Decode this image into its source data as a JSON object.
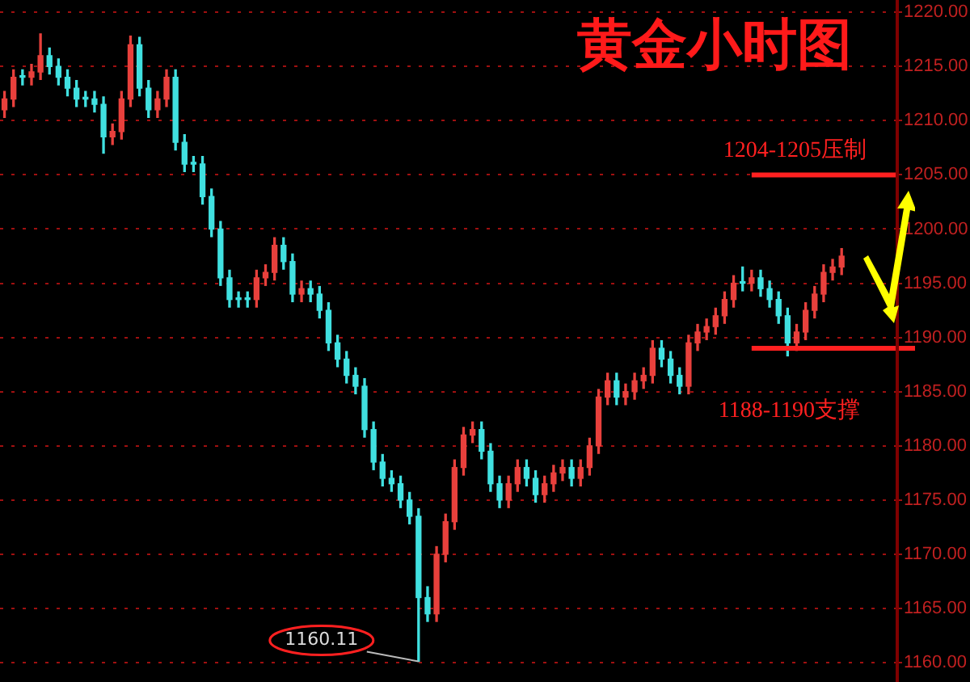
{
  "chart_data": {
    "type": "candlestick",
    "title": "黄金小时图",
    "categories": [
      null,
      null,
      null,
      null,
      null,
      null,
      null,
      null,
      null,
      null,
      null,
      null,
      null,
      null,
      null,
      null,
      null,
      null,
      null,
      null,
      null,
      null,
      null,
      null,
      null,
      null,
      null,
      null,
      null,
      null,
      null,
      null,
      null,
      null,
      null,
      null,
      null,
      null,
      null,
      null,
      null,
      null,
      null,
      null,
      null,
      null,
      null,
      null,
      null,
      null,
      null,
      null,
      null,
      null,
      null,
      null,
      null,
      null,
      null,
      null,
      null,
      null,
      null,
      null,
      null,
      null,
      null,
      null,
      null,
      null,
      null,
      null,
      null,
      null,
      null,
      null,
      null,
      null,
      null,
      null,
      null,
      null,
      null,
      null,
      null,
      null,
      null,
      null,
      null,
      null,
      null,
      null,
      null,
      null
    ],
    "ohlc": [
      [
        1211,
        1212.7,
        1210.3,
        1212
      ],
      [
        1212,
        1214.7,
        1211.3,
        1214
      ],
      [
        1214,
        1214.7,
        1213.3,
        1214
      ],
      [
        1214,
        1215.2,
        1213.3,
        1214.5
      ],
      [
        1214.5,
        1218,
        1213.8,
        1216
      ],
      [
        1216,
        1216.7,
        1214.3,
        1215
      ],
      [
        1215,
        1215.7,
        1213.3,
        1214
      ],
      [
        1214,
        1214.7,
        1212.3,
        1213
      ],
      [
        1213,
        1213.7,
        1211.3,
        1212
      ],
      [
        1212,
        1212.7,
        1211.3,
        1212
      ],
      [
        1212,
        1212.7,
        1210.8,
        1211.5
      ],
      [
        1211.5,
        1212.2,
        1207,
        1208.5
      ],
      [
        1208.5,
        1209.7,
        1207.8,
        1209
      ],
      [
        1209,
        1212.7,
        1208.3,
        1212
      ],
      [
        1212,
        1217.8,
        1211.3,
        1217
      ],
      [
        1217,
        1217.7,
        1212.3,
        1213
      ],
      [
        1213,
        1213.7,
        1210.3,
        1211
      ],
      [
        1211,
        1212.7,
        1210.3,
        1212
      ],
      [
        1212,
        1214.7,
        1211.3,
        1214
      ],
      [
        1214,
        1214.7,
        1207.3,
        1208
      ],
      [
        1208,
        1208.7,
        1205.3,
        1206
      ],
      [
        1206,
        1206.7,
        1205.3,
        1206
      ],
      [
        1206,
        1206.7,
        1202.3,
        1203
      ],
      [
        1203,
        1203.7,
        1199.3,
        1200
      ],
      [
        1200,
        1200.7,
        1194.8,
        1195.5
      ],
      [
        1195.5,
        1196.2,
        1192.8,
        1193.5
      ],
      [
        1193.5,
        1194.2,
        1192.8,
        1193.5
      ],
      [
        1193.5,
        1194.2,
        1192.8,
        1193.5
      ],
      [
        1193.5,
        1196.2,
        1192.8,
        1195.5
      ],
      [
        1195.5,
        1196.7,
        1194.8,
        1196
      ],
      [
        1196,
        1199.2,
        1195.3,
        1198.5
      ],
      [
        1198.5,
        1199.2,
        1196.3,
        1197
      ],
      [
        1197,
        1197.7,
        1193.3,
        1194
      ],
      [
        1194,
        1195.2,
        1193.3,
        1194.5
      ],
      [
        1194.5,
        1195.2,
        1193.3,
        1194
      ],
      [
        1194,
        1194.7,
        1191.8,
        1192.5
      ],
      [
        1192.5,
        1193.2,
        1188.8,
        1189.5
      ],
      [
        1189.5,
        1190.2,
        1187.3,
        1188
      ],
      [
        1188,
        1188.7,
        1185.8,
        1186.5
      ],
      [
        1186.5,
        1187.2,
        1184.8,
        1185.5
      ],
      [
        1185.5,
        1186.2,
        1180.8,
        1181.5
      ],
      [
        1181.5,
        1182.2,
        1177.8,
        1178.5
      ],
      [
        1178.5,
        1179.2,
        1176.3,
        1177
      ],
      [
        1177,
        1177.7,
        1175.8,
        1176.5
      ],
      [
        1176.5,
        1177.2,
        1174.3,
        1175
      ],
      [
        1175,
        1175.7,
        1172.8,
        1173.5
      ],
      [
        1173.5,
        1174.2,
        1160.11,
        1166
      ],
      [
        1166,
        1167,
        1163.8,
        1164.5
      ],
      [
        1164.5,
        1170.7,
        1163.8,
        1170
      ],
      [
        1170,
        1173.7,
        1169.3,
        1173
      ],
      [
        1173,
        1178.7,
        1172.3,
        1178
      ],
      [
        1178,
        1181.7,
        1177.3,
        1181
      ],
      [
        1181,
        1182.2,
        1180.3,
        1181.5
      ],
      [
        1181.5,
        1182.2,
        1178.8,
        1179.5
      ],
      [
        1179.5,
        1180.2,
        1175.8,
        1176.5
      ],
      [
        1176.5,
        1177.2,
        1174.3,
        1175
      ],
      [
        1175,
        1177.2,
        1174.3,
        1176.5
      ],
      [
        1176.5,
        1178.7,
        1175.8,
        1178
      ],
      [
        1178,
        1178.7,
        1176.3,
        1177
      ],
      [
        1177,
        1177.7,
        1174.8,
        1175.5
      ],
      [
        1175.5,
        1177.2,
        1174.8,
        1176.5
      ],
      [
        1176.5,
        1178.2,
        1175.8,
        1177.5
      ],
      [
        1177.5,
        1178.7,
        1176.8,
        1178
      ],
      [
        1178,
        1178.7,
        1176.3,
        1177
      ],
      [
        1177,
        1178.7,
        1176.3,
        1178
      ],
      [
        1178,
        1180.7,
        1177.3,
        1180
      ],
      [
        1180,
        1185.2,
        1179.3,
        1184.5
      ],
      [
        1184.5,
        1186.7,
        1183.8,
        1186
      ],
      [
        1186,
        1186.7,
        1183.8,
        1184.5
      ],
      [
        1184.5,
        1185.7,
        1183.8,
        1185
      ],
      [
        1185,
        1186.7,
        1184.3,
        1186
      ],
      [
        1186,
        1187.2,
        1185.3,
        1186.5
      ],
      [
        1186.5,
        1189.7,
        1185.8,
        1189
      ],
      [
        1189,
        1189.7,
        1187.3,
        1188
      ],
      [
        1188,
        1188.7,
        1185.8,
        1186.5
      ],
      [
        1186.5,
        1187.2,
        1184.8,
        1185.5
      ],
      [
        1185.5,
        1190.2,
        1184.8,
        1189.5
      ],
      [
        1189.5,
        1191.2,
        1188.8,
        1190.5
      ],
      [
        1190.5,
        1191.7,
        1189.8,
        1191
      ],
      [
        1191,
        1192.7,
        1190.3,
        1192
      ],
      [
        1192,
        1194.2,
        1191.3,
        1193.5
      ],
      [
        1193.5,
        1195.7,
        1192.8,
        1195
      ],
      [
        1195,
        1196.5,
        1194.3,
        1195
      ],
      [
        1195,
        1196.2,
        1194.3,
        1195.5
      ],
      [
        1195.5,
        1196.2,
        1193.8,
        1194.5
      ],
      [
        1194.5,
        1195.2,
        1192.8,
        1193.5
      ],
      [
        1193.5,
        1194.2,
        1191.3,
        1192
      ],
      [
        1192,
        1192.7,
        1188.3,
        1189.5
      ],
      [
        1189.5,
        1191.2,
        1188.8,
        1190.5
      ],
      [
        1190.5,
        1193.2,
        1189.8,
        1192.5
      ],
      [
        1192.5,
        1194.7,
        1191.8,
        1194
      ],
      [
        1194,
        1196.7,
        1193.3,
        1196
      ],
      [
        1196,
        1197.2,
        1195.3,
        1196.5
      ],
      [
        1196.5,
        1198.2,
        1195.8,
        1197.5
      ]
    ],
    "colors": [
      "#e8403c",
      "#e8403c",
      "#40e0e0",
      "#e8403c",
      "#e8403c",
      "#40e0e0",
      "#40e0e0",
      "#40e0e0",
      "#40e0e0",
      "#40e0e0",
      "#40e0e0",
      "#40e0e0",
      "#e8403c",
      "#e8403c",
      "#e8403c",
      "#40e0e0",
      "#40e0e0",
      "#e8403c",
      "#e8403c",
      "#40e0e0",
      "#40e0e0",
      "#40e0e0",
      "#40e0e0",
      "#40e0e0",
      "#40e0e0",
      "#40e0e0",
      "#40e0e0",
      "#40e0e0",
      "#e8403c",
      "#e8403c",
      "#e8403c",
      "#40e0e0",
      "#40e0e0",
      "#e8403c",
      "#40e0e0",
      "#40e0e0",
      "#40e0e0",
      "#40e0e0",
      "#40e0e0",
      "#40e0e0",
      "#40e0e0",
      "#40e0e0",
      "#40e0e0",
      "#40e0e0",
      "#40e0e0",
      "#40e0e0",
      "#40e0e0",
      "#40e0e0",
      "#e8403c",
      "#e8403c",
      "#e8403c",
      "#e8403c",
      "#e8403c",
      "#40e0e0",
      "#40e0e0",
      "#40e0e0",
      "#e8403c",
      "#e8403c",
      "#40e0e0",
      "#40e0e0",
      "#e8403c",
      "#e8403c",
      "#e8403c",
      "#40e0e0",
      "#e8403c",
      "#e8403c",
      "#e8403c",
      "#e8403c",
      "#40e0e0",
      "#e8403c",
      "#e8403c",
      "#e8403c",
      "#e8403c",
      "#40e0e0",
      "#40e0e0",
      "#40e0e0",
      "#e8403c",
      "#e8403c",
      "#e8403c",
      "#e8403c",
      "#e8403c",
      "#e8403c",
      "#40e0e0",
      "#e8403c",
      "#40e0e0",
      "#40e0e0",
      "#40e0e0",
      "#40e0e0",
      "#e8403c",
      "#e8403c",
      "#e8403c",
      "#e8403c",
      "#e8403c",
      "#e8403c"
    ],
    "ylim": [
      1160,
      1220
    ],
    "yticks": [
      {
        "value": 1160,
        "label": "1160.00"
      },
      {
        "value": 1165,
        "label": "1165.00"
      },
      {
        "value": 1170,
        "label": "1170.00"
      },
      {
        "value": 1175,
        "label": "1175.00"
      },
      {
        "value": 1180,
        "label": "1180.00"
      },
      {
        "value": 1185,
        "label": "1185.00"
      },
      {
        "value": 1190,
        "label": "1190.00"
      },
      {
        "value": 1195,
        "label": "1195.00"
      },
      {
        "value": 1200,
        "label": "1200.00"
      },
      {
        "value": 1205,
        "label": "1205.00"
      },
      {
        "value": 1210,
        "label": "1210.00"
      },
      {
        "value": 1215,
        "label": "1215.00"
      },
      {
        "value": 1220,
        "label": "1220.00"
      }
    ],
    "grid": "y",
    "legend": false,
    "tick_labels": "y",
    "ref_lines": [
      {
        "axis": "y",
        "value": 1205,
        "label": "1204-1205压制",
        "color": "#ff2020"
      },
      {
        "axis": "y",
        "value": 1189,
        "label": "1188-1190支撑",
        "color": "#ff2020"
      }
    ],
    "annotations": [
      "1160.11"
    ]
  }
}
